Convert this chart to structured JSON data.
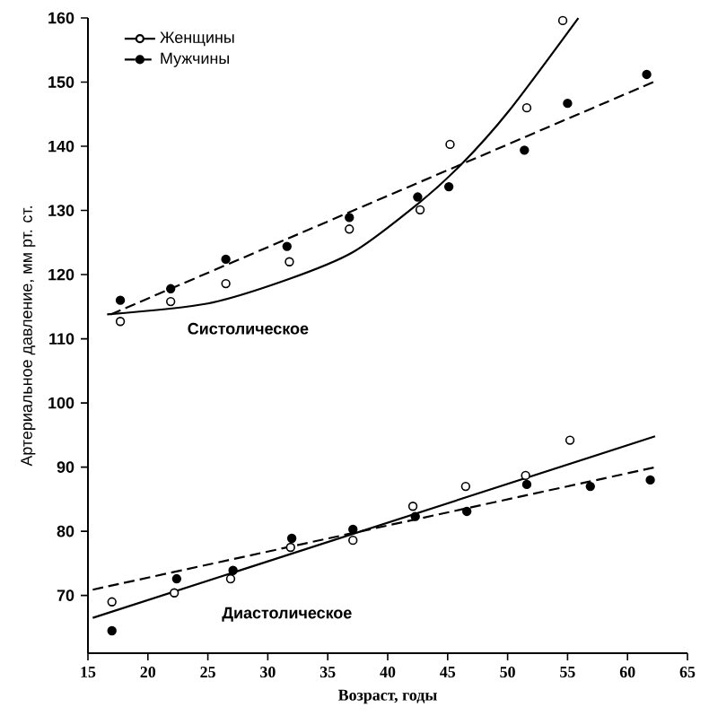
{
  "chart_data": {
    "type": "scatter",
    "xlabel": "Возраст, годы",
    "ylabel": "Артериальное давление, мм рт. ст.",
    "xlim": [
      15,
      65
    ],
    "ylim": [
      61,
      160
    ],
    "xticks": [
      15,
      20,
      25,
      30,
      35,
      40,
      45,
      50,
      55,
      60,
      65
    ],
    "yticks": [
      70,
      80,
      90,
      100,
      110,
      120,
      130,
      140,
      150,
      160
    ],
    "grid": false,
    "legend": "top left",
    "series": [
      {
        "name": "Женщины",
        "marker": "circle",
        "line_style": "solid",
        "color": "#000000",
        "x": [
          17.7,
          21.9,
          26.5,
          31.8,
          36.8,
          42.7,
          45.2,
          51.6,
          54.6
        ],
        "values": [
          112.7,
          115.8,
          118.6,
          122.0,
          127.1,
          130.1,
          140.3,
          146.0,
          159.6
        ]
      },
      {
        "name": "Мужчины",
        "marker": "circle",
        "line_style": "dashed",
        "color": "#000000",
        "x": [
          17.7,
          21.9,
          26.5,
          31.6,
          36.8,
          42.5,
          45.1,
          51.4,
          55.0,
          61.6
        ],
        "values": [
          116.0,
          117.8,
          122.4,
          124.4,
          128.9,
          132.1,
          133.7,
          139.4,
          146.7,
          151.2
        ]
      },
      {
        "type": "line",
        "line_style": "solid",
        "color": "#000000",
        "x": [
          16.6,
          25.0,
          31.6,
          37.1,
          42.5,
          46.1,
          50.1,
          55.9
        ],
        "values": [
          113.8,
          115.5,
          119.2,
          123.5,
          131.0,
          137.1,
          145.5,
          160.0
        ]
      },
      {
        "type": "line",
        "line_style": "dashed",
        "color": "#000000",
        "x": [
          16.9,
          62.4
        ],
        "values": [
          113.8,
          150.2
        ]
      },
      {
        "marker": "circle",
        "line_style": "solid",
        "color": "#000000",
        "x": [
          17.0,
          22.2,
          26.9,
          31.9,
          37.1,
          42.1,
          46.5,
          51.5,
          55.2
        ],
        "values": [
          69.0,
          70.4,
          72.6,
          77.5,
          78.6,
          83.9,
          87.0,
          88.7,
          94.2
        ]
      },
      {
        "marker": "circle",
        "line_style": "dashed",
        "color": "#000000",
        "x": [
          17.0,
          22.4,
          27.1,
          32.0,
          37.1,
          42.3,
          46.6,
          51.6,
          56.9,
          61.9
        ],
        "values": [
          64.5,
          72.6,
          73.9,
          78.9,
          80.3,
          82.3,
          83.1,
          87.3,
          87.0,
          88.0
        ]
      },
      {
        "type": "line",
        "line_style": "solid",
        "color": "#000000",
        "x": [
          15.4,
          62.3
        ],
        "values": [
          66.5,
          94.8
        ]
      },
      {
        "type": "line",
        "line_style": "dashed",
        "color": "#000000",
        "x": [
          15.4,
          62.6
        ],
        "values": [
          70.9,
          90.1
        ]
      }
    ],
    "annotations": [
      "Систолическое",
      "Диастолическое"
    ]
  }
}
